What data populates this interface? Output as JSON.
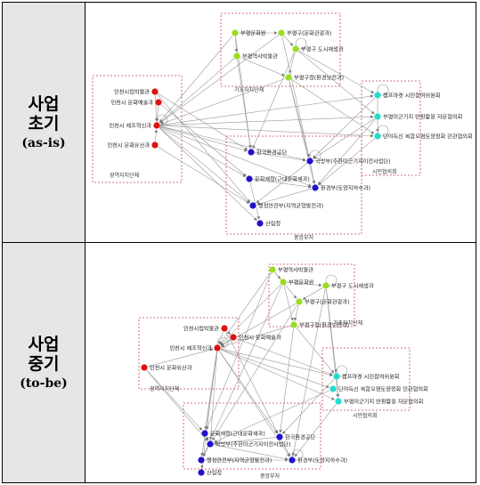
{
  "rows": [
    {
      "label_line1": "사업",
      "label_line2": "초기",
      "label_sub": "(as-is)",
      "groups": [
        {
          "key": "local",
          "label": "기초자치단체"
        },
        {
          "key": "metro",
          "label": "광역자치단체"
        },
        {
          "key": "central",
          "label": "중앙부처"
        },
        {
          "key": "civil",
          "label": "시민협의회"
        }
      ],
      "nodes": [
        {
          "id": "a1",
          "label": "부평문화원",
          "color": "#99dd22"
        },
        {
          "id": "a2",
          "label": "부평구(문화관광과)",
          "color": "#99dd22"
        },
        {
          "id": "a3",
          "label": "부평구 도시재생과",
          "color": "#99dd22"
        },
        {
          "id": "a4",
          "label": "부평역사박물관",
          "color": "#99dd22"
        },
        {
          "id": "a5",
          "label": "부평구청(환경보전과)",
          "color": "#99dd22"
        },
        {
          "id": "a6",
          "label": "인천시립박물관",
          "color": "#dd1111"
        },
        {
          "id": "a7",
          "label": "인천시 문화예술과",
          "color": "#dd1111"
        },
        {
          "id": "a8",
          "label": "인천시 제조혁신과",
          "color": "#dd1111"
        },
        {
          "id": "a9",
          "label": "인천시 문화유산과",
          "color": "#dd1111"
        },
        {
          "id": "a10",
          "label": "캠프마켓 시민참여위원회",
          "color": "#22ddcc"
        },
        {
          "id": "a11",
          "label": "부평미군기지 반환활용 자문협의회",
          "color": "#22ddcc"
        },
        {
          "id": "a12",
          "label": "단야득신 복합오염토양정화 민관협의회",
          "color": "#22ddcc"
        },
        {
          "id": "a13",
          "label": "한국환경공단",
          "color": "#2211cc"
        },
        {
          "id": "a14",
          "label": "국방부(주한미군기지이전사업단)",
          "color": "#2211cc"
        },
        {
          "id": "a15",
          "label": "문화재청(근대문화재과)",
          "color": "#2211cc"
        },
        {
          "id": "a16",
          "label": "환경부(토양지하수과)",
          "color": "#2211cc"
        },
        {
          "id": "a17",
          "label": "행정안전부(지역균형발전과)",
          "color": "#2211cc"
        },
        {
          "id": "a18",
          "label": "산림청",
          "color": "#2211cc"
        }
      ]
    },
    {
      "label_line1": "사업",
      "label_line2": "중기",
      "label_sub": "(to-be)",
      "groups": [
        {
          "key": "local",
          "label": "기초자치단체"
        },
        {
          "key": "metro",
          "label": "광역자치단체"
        },
        {
          "key": "central",
          "label": "중앙부처"
        },
        {
          "key": "civil",
          "label": "시민협의회"
        }
      ],
      "nodes": [
        {
          "id": "b1",
          "label": "부평역사박물관",
          "color": "#99dd22"
        },
        {
          "id": "b2",
          "label": "부평문화원",
          "color": "#99dd22"
        },
        {
          "id": "b3",
          "label": "부평구 도시재생과",
          "color": "#99dd22"
        },
        {
          "id": "b4",
          "label": "부평구(문화관광과)",
          "color": "#99dd22"
        },
        {
          "id": "b5",
          "label": "부평구청(환경보전과)",
          "color": "#99dd22"
        },
        {
          "id": "b6",
          "label": "인천시립박물관",
          "color": "#dd1111"
        },
        {
          "id": "b7",
          "label": "인천시 문화예술과",
          "color": "#dd1111"
        },
        {
          "id": "b8",
          "label": "인천시 제조혁신과",
          "color": "#dd1111"
        },
        {
          "id": "b9",
          "label": "인천시 문화유산과",
          "color": "#dd1111"
        },
        {
          "id": "b10",
          "label": "캠프마켓 시민참여위원회",
          "color": "#22ddcc"
        },
        {
          "id": "b11",
          "label": "단야득신 복합오염토양정화 민관협의회",
          "color": "#22ddcc"
        },
        {
          "id": "b12",
          "label": "부평미군기지 반환활용 자문협의회",
          "color": "#22ddcc"
        },
        {
          "id": "b13",
          "label": "문화재청(근대문화재과)",
          "color": "#2211cc"
        },
        {
          "id": "b14",
          "label": "한국환경공단",
          "color": "#2211cc"
        },
        {
          "id": "b15",
          "label": "국방부(주한미군기지이전사업단)",
          "color": "#2211cc"
        },
        {
          "id": "b16",
          "label": "행정안전부(지역균형발전과)",
          "color": "#2211cc"
        },
        {
          "id": "b17",
          "label": "환경부(토양지하수과)",
          "color": "#2211cc"
        },
        {
          "id": "b18",
          "label": "산림청",
          "color": "#2211cc"
        }
      ]
    }
  ]
}
